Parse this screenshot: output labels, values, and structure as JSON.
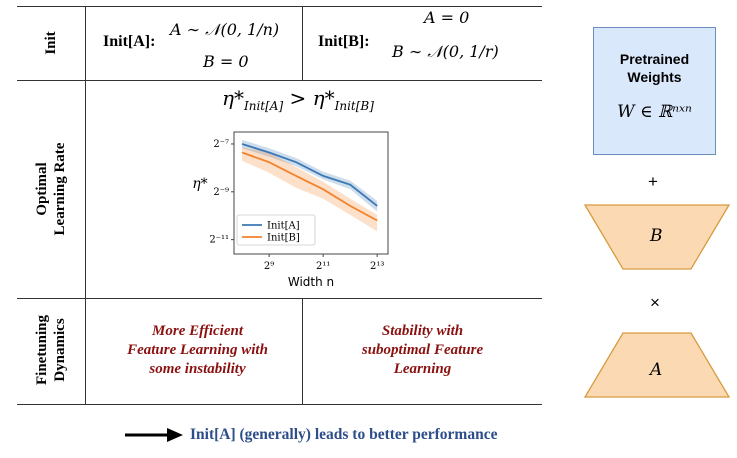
{
  "table": {
    "rows": {
      "init": "Init",
      "lr_line1": "Optimal",
      "lr_line2": "Learning Rate",
      "ft_line1": "Finetuning",
      "ft_line2": "Dynamics"
    },
    "init_a": {
      "label": "Init[A]:",
      "a_formula": "A ∼ 𝒩(0, 1/n)",
      "b_formula": "B = 0"
    },
    "init_b": {
      "label": "Init[B]:",
      "a_formula": "A = 0",
      "b_formula": "B ∼ 𝒩(0, 1/r)"
    },
    "lr_relation": {
      "left": "η*",
      "left_sub": "Init[A]",
      "op": ">",
      "right": "η*",
      "right_sub": "Init[B]"
    },
    "dyn_a": {
      "line1": "More Efficient",
      "line2": "Feature Learning with",
      "line3": "some instability"
    },
    "dyn_b": {
      "line1": "Stability with",
      "line2": "suboptimal Feature",
      "line3": "Learning"
    }
  },
  "chart_data": {
    "type": "line",
    "xlabel": "Width n",
    "ylabel": "η*",
    "x_scale": "log2",
    "y_scale": "log2",
    "x_ticks": [
      "2⁹",
      "2¹¹",
      "2¹³"
    ],
    "y_ticks": [
      "2⁻⁷",
      "2⁻⁹",
      "2⁻¹¹"
    ],
    "legend_position": "lower-left",
    "series": [
      {
        "name": "Init[A]",
        "color": "#3a78b5",
        "x": [
          256,
          512,
          1024,
          2048,
          4096,
          8192
        ],
        "y": [
          0.0078,
          0.0061,
          0.0046,
          0.0031,
          0.0024,
          0.0013
        ],
        "band_low": [
          0.0069,
          0.0054,
          0.0041,
          0.0028,
          0.0021,
          0.0011
        ],
        "band_high": [
          0.0088,
          0.0069,
          0.0052,
          0.0035,
          0.0027,
          0.0015
        ]
      },
      {
        "name": "Init[B]",
        "color": "#f2832d",
        "x": [
          256,
          512,
          1024,
          2048,
          4096,
          8192
        ],
        "y": [
          0.0061,
          0.0046,
          0.0031,
          0.0021,
          0.0013,
          0.00085
        ],
        "band_low": [
          0.0048,
          0.0034,
          0.0022,
          0.0016,
          0.001,
          0.00062
        ],
        "band_high": [
          0.0071,
          0.0061,
          0.004,
          0.0026,
          0.0016,
          0.001
        ]
      }
    ]
  },
  "side": {
    "pretrained_title1": "Pretrained",
    "pretrained_title2": "Weights",
    "pretrained_formula": "W ∈ ℝⁿˣⁿ",
    "plus": "+",
    "b_label": "B",
    "times": "×",
    "a_label": "A",
    "box_color": "#dae8fc",
    "box_border": "#6c8ebf",
    "trap_color": "#fbd9b3",
    "trap_border": "#d79b3e"
  },
  "footer": {
    "text": "Init[A] (generally) leads to better performance",
    "color": "#2d4e8a"
  }
}
